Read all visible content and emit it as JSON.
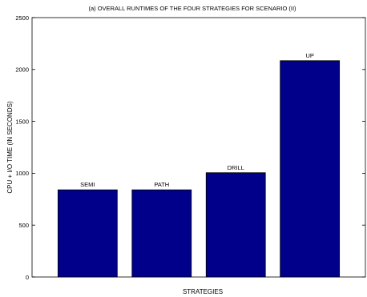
{
  "chart_data": {
    "type": "bar",
    "title": "(a) OVERALL RUNTIMES OF THE FOUR STRATEGIES FOR SCENARIO (II)",
    "xlabel": "STRATEGIES",
    "ylabel": "CPU + I/O TIME (IN SECONDS)",
    "categories": [
      "SEMI",
      "PATH",
      "DRILL",
      "UP"
    ],
    "values": [
      840,
      840,
      1005,
      2085
    ],
    "ylim": [
      0,
      2500
    ],
    "yticks": [
      0,
      500,
      1000,
      1500,
      2000,
      2500
    ],
    "bar_color": "#00008b",
    "grid": false,
    "show_x_tick_labels": false,
    "bar_labels_above": true
  }
}
